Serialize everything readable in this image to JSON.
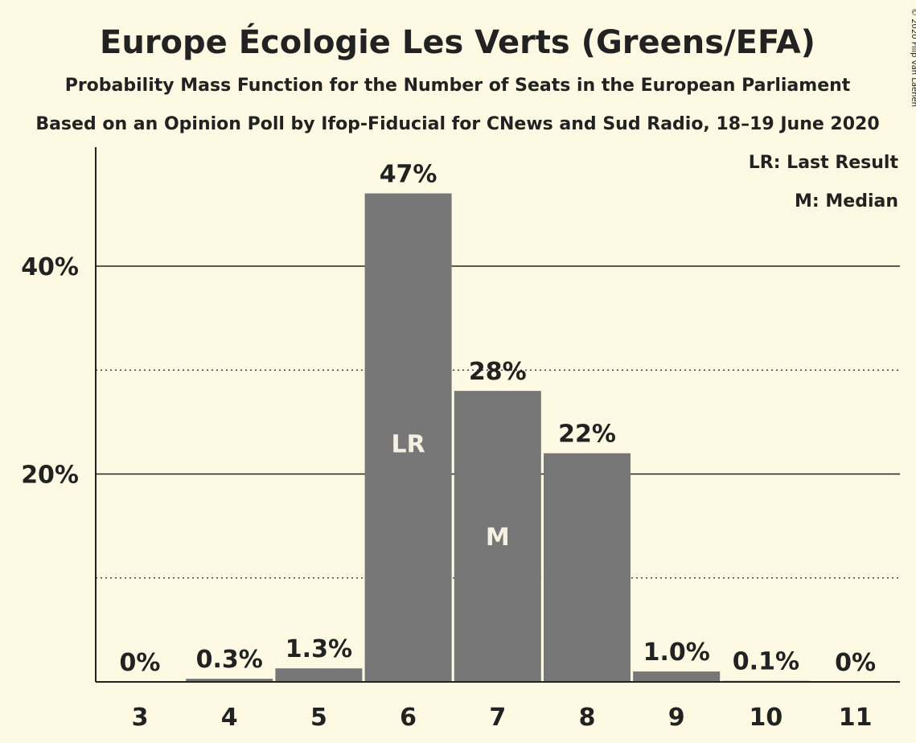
{
  "chart_data": {
    "type": "bar",
    "title": "Europe Écologie Les Verts (Greens/EFA)",
    "subtitle": "Probability Mass Function for the Number of Seats in the European Parliament",
    "source": "Based on an Opinion Poll by Ifop-Fiducial for CNews and Sud Radio, 18–19 June 2020",
    "categories": [
      "3",
      "4",
      "5",
      "6",
      "7",
      "8",
      "9",
      "10",
      "11"
    ],
    "values": [
      0,
      0.3,
      1.3,
      47,
      28,
      22,
      1.0,
      0.1,
      0
    ],
    "data_labels": [
      "0%",
      "0.3%",
      "1.3%",
      "47%",
      "28%",
      "22%",
      "1.0%",
      "0.1%",
      "0%"
    ],
    "bar_markers": {
      "6": "LR",
      "7": "M"
    },
    "ylim": [
      0,
      51
    ],
    "yticks": [
      {
        "value": 20,
        "label": "20%"
      },
      {
        "value": 40,
        "label": "40%"
      }
    ],
    "minor_gridlines": [
      10,
      30
    ],
    "legend": [
      "LR: Last Result",
      "M: Median"
    ],
    "legend_position": "top-right",
    "grid": true,
    "bar_color": "#777777"
  },
  "copyright": "© 2020 Filip van Laenen"
}
